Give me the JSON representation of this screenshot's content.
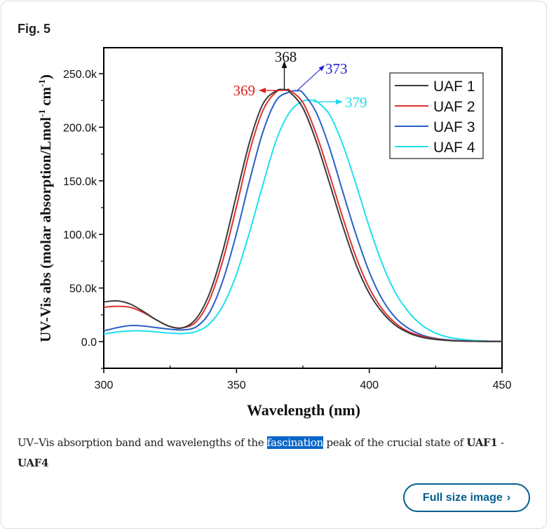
{
  "figure": {
    "label": "Fig. 5",
    "caption_parts": {
      "before": "UV–Vis absorption band and wavelengths of the ",
      "highlight": "fascination",
      "middle": " peak of the crucial state of ",
      "bold1": "UAF1",
      "sep": " - ",
      "bold2": "UAF4"
    },
    "full_size_button": "Full size image",
    "chevron_icon": "chevron-right-icon"
  },
  "chart_data": {
    "type": "line",
    "title": "",
    "xlabel": "Wavelength (nm)",
    "ylabel_main": "UV-Vis abs (molar absorption/Lmol",
    "ylabel_sup1": "-1",
    "ylabel_mid": " cm",
    "ylabel_sup2": "-1",
    "ylabel_end": ")",
    "xlim": [
      300,
      450
    ],
    "ylim": [
      -25000,
      270000
    ],
    "x_ticks": [
      300,
      350,
      400,
      450
    ],
    "x_tick_labels": [
      "300",
      "350",
      "400",
      "450"
    ],
    "y_ticks": [
      0,
      50000,
      100000,
      150000,
      200000,
      250000
    ],
    "y_tick_labels": [
      "0.0",
      "50.0k",
      "100.0k",
      "150.0k",
      "200.0k",
      "250.0k"
    ],
    "grid": false,
    "legend_position": "top-right",
    "series": [
      {
        "name": "UAF 1",
        "color": "#3a3a3a",
        "peak_nm": 368,
        "peak_value": 235000,
        "band_width_nm": 23,
        "x": [
          300,
          305,
          310,
          315,
          320,
          325,
          330,
          335,
          340,
          345,
          350,
          355,
          360,
          365,
          368,
          370,
          375,
          380,
          385,
          390,
          395,
          400,
          405,
          410,
          415,
          420,
          425,
          430,
          435,
          440,
          445,
          450
        ],
        "y": [
          37000,
          38000,
          35000,
          28000,
          20000,
          14000,
          13000,
          22000,
          46000,
          86000,
          137000,
          187000,
          222000,
          234000,
          235000,
          233000,
          218000,
          187000,
          148000,
          108000,
          72000,
          45000,
          27000,
          15000,
          8000,
          4000,
          2000,
          1000,
          500,
          300,
          200,
          100
        ]
      },
      {
        "name": "UAF 2",
        "color": "#e03030",
        "peak_nm": 369,
        "peak_value": 235000,
        "band_width_nm": 23,
        "x": [
          300,
          305,
          310,
          315,
          320,
          325,
          330,
          335,
          340,
          345,
          350,
          355,
          360,
          365,
          369,
          370,
          375,
          380,
          385,
          390,
          395,
          400,
          405,
          410,
          415,
          420,
          425,
          430,
          435,
          440,
          445,
          450
        ],
        "y": [
          32000,
          33000,
          32000,
          27000,
          20000,
          14000,
          13000,
          19000,
          40000,
          77000,
          126000,
          178000,
          216000,
          233000,
          235000,
          234500,
          223000,
          194000,
          156000,
          116000,
          79000,
          50000,
          30000,
          17000,
          9000,
          5000,
          2500,
          1200,
          600,
          300,
          200,
          100
        ]
      },
      {
        "name": "UAF 3",
        "color": "#2a5fc8",
        "peak_nm": 373,
        "peak_value": 234000,
        "band_width_nm": 24,
        "x": [
          300,
          305,
          310,
          315,
          320,
          325,
          330,
          335,
          340,
          345,
          350,
          355,
          360,
          365,
          370,
          373,
          375,
          380,
          385,
          390,
          395,
          400,
          405,
          410,
          415,
          420,
          425,
          430,
          435,
          440,
          445,
          450
        ],
        "y": [
          10000,
          13000,
          15000,
          14500,
          13000,
          11500,
          11000,
          14000,
          28000,
          58000,
          101000,
          151000,
          196000,
          225000,
          233000,
          234000,
          232000,
          214000,
          181000,
          140000,
          100000,
          65000,
          39000,
          22000,
          12000,
          6000,
          3000,
          1500,
          700,
          300,
          200,
          100
        ]
      },
      {
        "name": "UAF 4",
        "color": "#1ee0ee",
        "peak_nm": 379,
        "peak_value": 225000,
        "band_width_nm": 25,
        "x": [
          300,
          305,
          310,
          315,
          320,
          325,
          330,
          335,
          340,
          345,
          350,
          355,
          360,
          365,
          370,
          375,
          379,
          380,
          385,
          390,
          395,
          400,
          405,
          410,
          415,
          420,
          425,
          430,
          435,
          440,
          445,
          450
        ],
        "y": [
          7000,
          9000,
          10000,
          10000,
          9000,
          8000,
          7500,
          9500,
          17000,
          34000,
          63000,
          103000,
          147000,
          188000,
          214000,
          224500,
          225000,
          224500,
          212000,
          184000,
          147000,
          107000,
          72000,
          45000,
          27000,
          15000,
          8000,
          4000,
          2000,
          1000,
          500,
          200
        ]
      }
    ],
    "annotations": [
      {
        "text": "368",
        "series": "UAF 1",
        "color": "#111111",
        "direction": "up"
      },
      {
        "text": "369",
        "series": "UAF 2",
        "color": "#e02020",
        "direction": "left"
      },
      {
        "text": "373",
        "series": "UAF 3",
        "color": "#2020d0",
        "direction": "up-right"
      },
      {
        "text": "379",
        "series": "UAF 4",
        "color": "#22d8e8",
        "direction": "right"
      }
    ]
  }
}
